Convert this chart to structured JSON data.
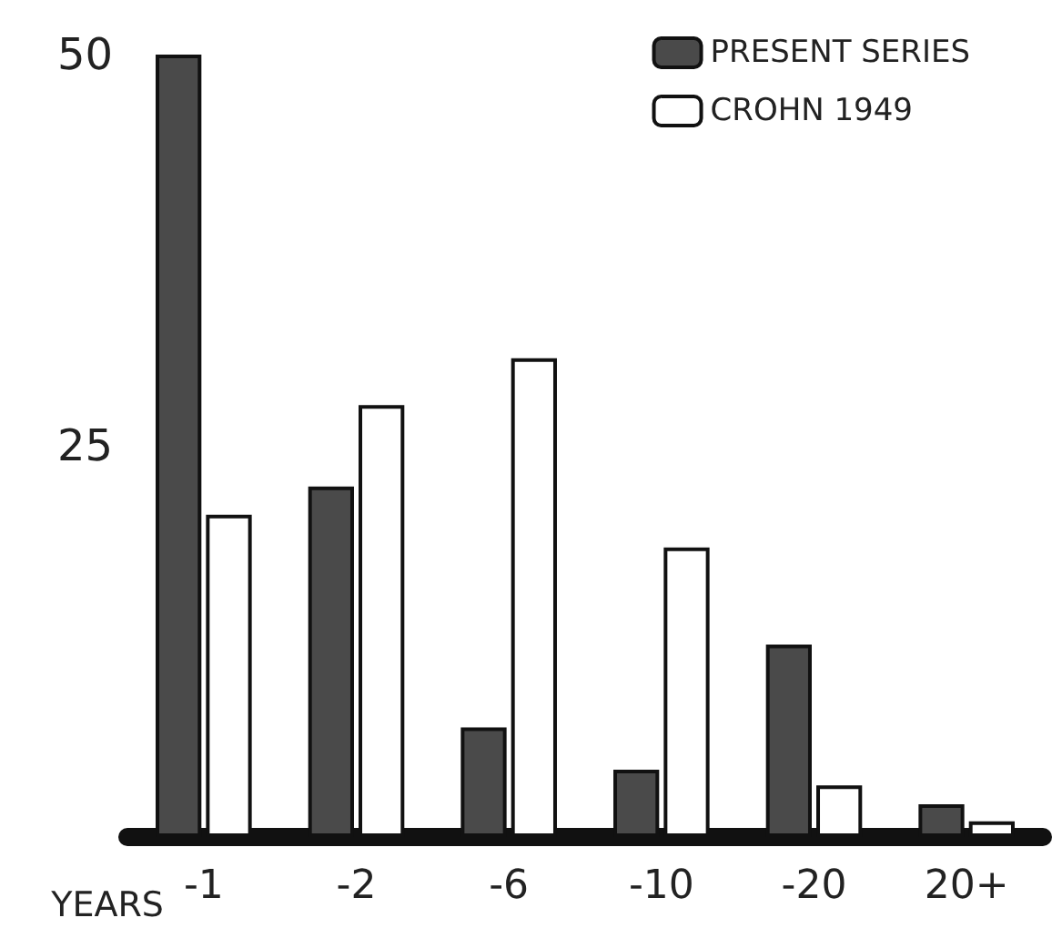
{
  "chart_data": {
    "type": "bar",
    "xlabel": "YEARS",
    "categories": [
      "-1",
      "-2",
      "-6",
      "-10",
      "-20",
      "20+"
    ],
    "series": [
      {
        "name": "PRESENT SERIES",
        "color": "#4a4a4a",
        "values": [
          50,
          22.4,
          7,
          4.3,
          12.3,
          2.1
        ]
      },
      {
        "name": "CROHN 1949",
        "color": "#ffffff",
        "values": [
          20.6,
          27.6,
          30.6,
          18.5,
          3.3,
          1
        ]
      }
    ],
    "ylim": [
      0,
      50
    ],
    "yticks": [
      25,
      50
    ],
    "legend": "top right",
    "grid": false
  }
}
